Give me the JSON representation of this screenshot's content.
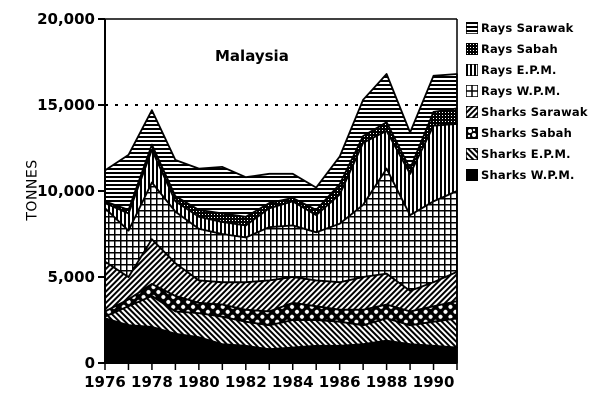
{
  "chart_data": {
    "type": "area",
    "stacked": true,
    "title": "Malaysia",
    "xlabel": "",
    "ylabel": "TONNES",
    "ylim": [
      0,
      20000
    ],
    "xlim": [
      1976,
      1991
    ],
    "yticks": [
      "0",
      "5,000",
      "10,000",
      "15,000",
      "20,000"
    ],
    "xticks": [
      "1976",
      "1978",
      "1980",
      "1982",
      "1984",
      "1986",
      "1988",
      "1990"
    ],
    "reference_line": {
      "y": 15000,
      "style": "dotted"
    },
    "grid": false,
    "legend_position": "right",
    "x": [
      1976,
      1977,
      1978,
      1979,
      1980,
      1981,
      1982,
      1983,
      1984,
      1985,
      1986,
      1987,
      1988,
      1989,
      1990,
      1991
    ],
    "series": [
      {
        "name": "Sharks W.P.M.",
        "pattern": "solid-black",
        "values": [
          2600,
          2200,
          2100,
          1700,
          1500,
          1100,
          1000,
          800,
          900,
          1000,
          1000,
          1100,
          1300,
          1100,
          1000,
          900
        ]
      },
      {
        "name": "Sharks E.P.M.",
        "pattern": "diagonal-right",
        "values": [
          100,
          1100,
          1800,
          1300,
          1400,
          1600,
          1400,
          1400,
          1600,
          1500,
          1400,
          1100,
          1300,
          1100,
          1400,
          1700
        ]
      },
      {
        "name": "Sharks Sabah",
        "pattern": "dotted-checker",
        "values": [
          300,
          400,
          700,
          900,
          600,
          700,
          700,
          800,
          1000,
          800,
          700,
          900,
          800,
          800,
          900,
          1000
        ]
      },
      {
        "name": "Sharks Sarawak",
        "pattern": "diagonal-left",
        "values": [
          2900,
          1300,
          2600,
          1900,
          1300,
          1300,
          1600,
          1800,
          1500,
          1500,
          1600,
          1900,
          1800,
          1200,
          1400,
          1700
        ]
      },
      {
        "name": "Rays W.P.M.",
        "pattern": "grid",
        "values": [
          3100,
          2700,
          3300,
          3000,
          3000,
          2800,
          2600,
          3100,
          3000,
          2800,
          3400,
          4200,
          6100,
          4400,
          4700,
          4700
        ]
      },
      {
        "name": "Rays E.P.M.",
        "pattern": "vertical",
        "values": [
          300,
          1000,
          1900,
          600,
          700,
          700,
          700,
          1100,
          1400,
          1000,
          1700,
          3600,
          2200,
          2400,
          4400,
          3900
        ]
      },
      {
        "name": "Rays Sabah",
        "pattern": "fine-checker",
        "values": [
          100,
          200,
          300,
          300,
          400,
          500,
          500,
          300,
          200,
          300,
          600,
          400,
          500,
          300,
          800,
          900
        ]
      },
      {
        "name": "Rays Sarawak",
        "pattern": "horizontal",
        "values": [
          1800,
          3200,
          2000,
          2100,
          2400,
          2700,
          2300,
          1700,
          1400,
          1300,
          1600,
          2100,
          2800,
          2100,
          2100,
          2000
        ]
      }
    ],
    "cumulative_totals": [
      11200,
      12100,
      14700,
      11800,
      11300,
      11400,
      10800,
      11000,
      11000,
      10200,
      12000,
      15300,
      16800,
      13400,
      16700,
      16800
    ]
  },
  "legend": {
    "items": [
      {
        "label": "Rays Sarawak",
        "pattern": "horizontal"
      },
      {
        "label": "Rays Sabah",
        "pattern": "fine-checker"
      },
      {
        "label": "Rays E.P.M.",
        "pattern": "vertical"
      },
      {
        "label": "Rays W.P.M.",
        "pattern": "grid"
      },
      {
        "label": "Sharks Sarawak",
        "pattern": "diagonal-left"
      },
      {
        "label": "Sharks Sabah",
        "pattern": "dotted-checker"
      },
      {
        "label": "Sharks E.P.M.",
        "pattern": "diagonal-right"
      },
      {
        "label": "Sharks W.P.M.",
        "pattern": "solid-black"
      }
    ]
  },
  "colors": {
    "ink": "#000000",
    "paper": "#ffffff"
  }
}
